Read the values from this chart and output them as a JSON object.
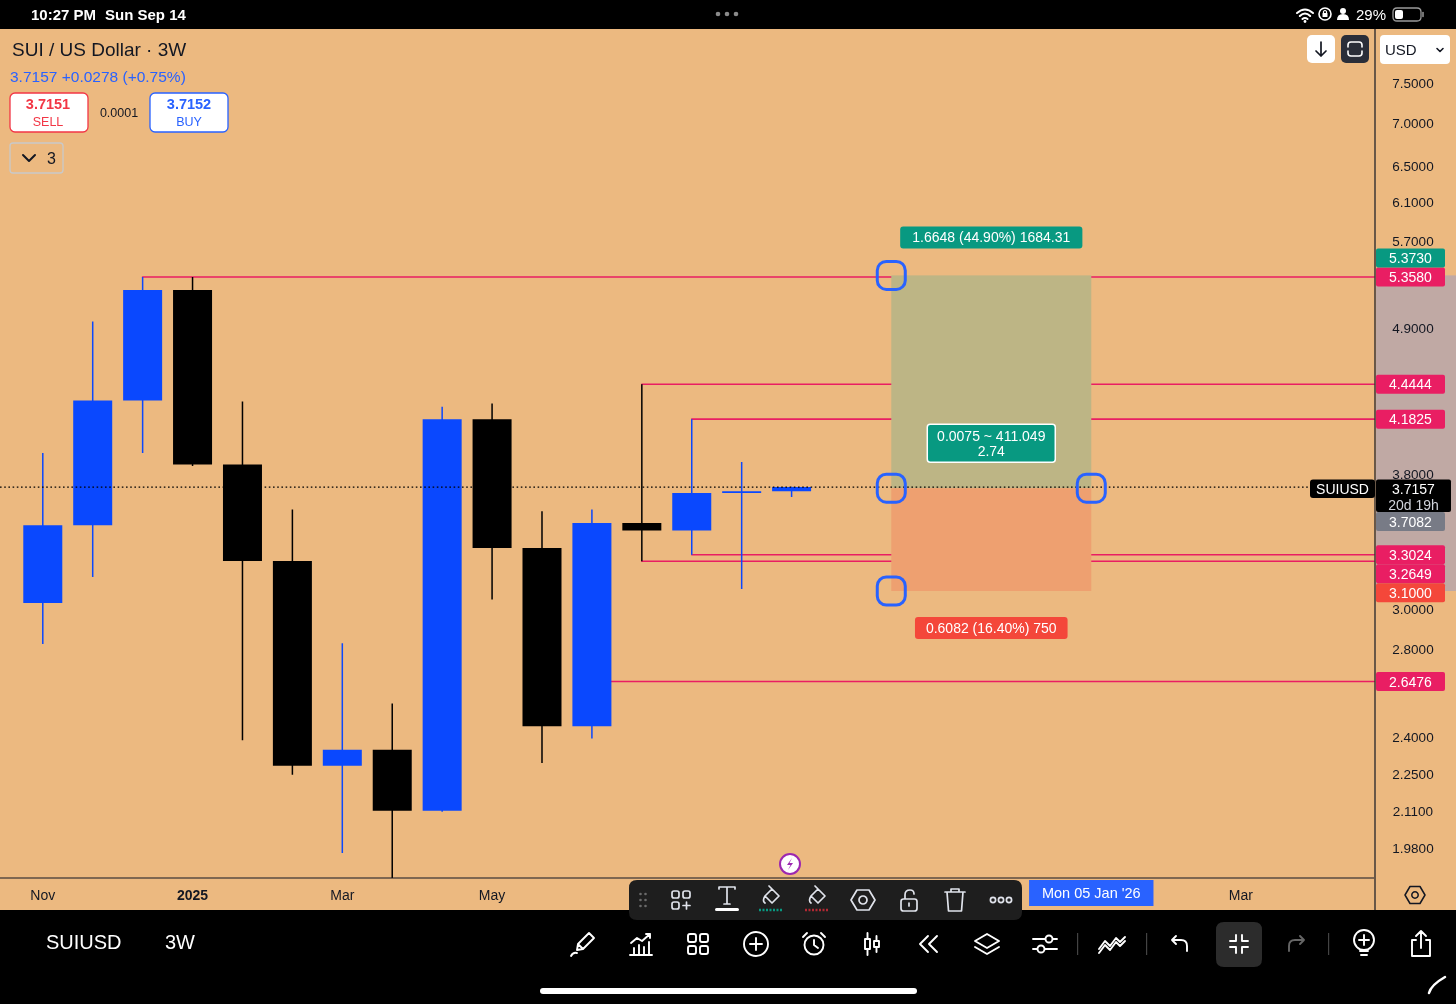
{
  "chart_data": {
    "type": "candlestick",
    "title": "SUI / US Dollar · 3W",
    "subtitle": "3.7157 +0.0278 (+0.75%)",
    "x": [
      "2024-11-04",
      "2024-11-25",
      "2024-12-16",
      "2025-01-06",
      "2025-01-27",
      "2025-02-17",
      "2025-03-10",
      "2025-03-31",
      "2025-04-21",
      "2025-05-12",
      "2025-06-02",
      "2025-06-23",
      "2025-07-14",
      "2025-08-04",
      "2025-08-25",
      "2025-09-15"
    ],
    "ohlc": [
      [
        3.036,
        3.943,
        2.826,
        3.476
      ],
      [
        3.476,
        4.958,
        3.177,
        4.321
      ],
      [
        4.321,
        5.358,
        3.943,
        5.238
      ],
      [
        5.238,
        5.358,
        3.854,
        3.865
      ],
      [
        3.865,
        4.313,
        2.39,
        3.266
      ],
      [
        3.266,
        3.573,
        2.251,
        2.286
      ],
      [
        2.286,
        2.83,
        1.964,
        2.351
      ],
      [
        2.351,
        2.548,
        1.88,
        2.114
      ],
      [
        2.114,
        4.274,
        2.11,
        4.181
      ],
      [
        4.181,
        4.298,
        3.054,
        3.341
      ],
      [
        3.341,
        3.562,
        2.297,
        2.449
      ],
      [
        2.449,
        3.573,
        2.397,
        3.49
      ],
      [
        3.49,
        4.4444,
        3.2649,
        3.444
      ],
      [
        3.444,
        4.1825,
        3.3024,
        3.678
      ],
      [
        3.678,
        3.882,
        3.111,
        3.6879
      ],
      [
        3.6879,
        3.718,
        3.652,
        3.7157
      ]
    ],
    "colors": [
      "#0a48fe",
      "#0a48fe",
      "#0a48fe",
      "#000000",
      "#000000",
      "#000000",
      "#0a48fe",
      "#000000",
      "#0a48fe",
      "#000000",
      "#000000",
      "#0a48fe",
      "#000000",
      "#0a48fe",
      "#0a48fe",
      "#0a48fe"
    ],
    "xlim": [
      "2024-10-17",
      "2026-05-18"
    ],
    "xticks": [
      {
        "value": "2024-11-04",
        "label": "Nov"
      },
      {
        "value": "2025-01-06",
        "label": "2025"
      },
      {
        "value": "2025-03-10",
        "label": "Mar"
      },
      {
        "value": "2025-05-12",
        "label": "May"
      },
      {
        "value": "2026-03-23",
        "label": "Mar"
      }
    ],
    "ylim": [
      1.88,
      8.24
    ],
    "yticks": [
      {
        "value": 7.5,
        "label": "7.5000"
      },
      {
        "value": 7,
        "label": "7.0000"
      },
      {
        "value": 6.5,
        "label": "6.5000"
      },
      {
        "value": 6.1,
        "label": "6.1000"
      },
      {
        "value": 5.7,
        "label": "5.7000"
      },
      {
        "value": 4.9,
        "label": "4.9000"
      },
      {
        "value": 3.8,
        "label": "3.8000"
      },
      {
        "value": 3,
        "label": "3.0000"
      },
      {
        "value": 2.8,
        "label": "2.8000"
      },
      {
        "value": 2.4,
        "label": "2.4000"
      },
      {
        "value": 2.25,
        "label": "2.2500"
      },
      {
        "value": 2.11,
        "label": "2.1100"
      },
      {
        "value": 1.98,
        "label": "1.9800"
      }
    ],
    "log": true,
    "series": [
      {
        "type": "line",
        "color": "#e91e63",
        "x": [
          "2024-12-16",
          "2026-05-18"
        ],
        "values": [
          5.358,
          5.358
        ],
        "value_labels": [
          null,
          "5.3580"
        ]
      },
      {
        "type": "line",
        "color": "#e91e63",
        "x": [
          "2025-07-14",
          "2026-05-18"
        ],
        "values": [
          4.4444,
          4.4444
        ],
        "value_labels": [
          null,
          "4.4444"
        ]
      },
      {
        "type": "line",
        "color": "#e91e63",
        "x": [
          "2025-08-04",
          "2026-05-18"
        ],
        "values": [
          4.1825,
          4.1825
        ],
        "value_labels": [
          null,
          "4.1825"
        ]
      },
      {
        "type": "line",
        "color": "#e91e63",
        "x": [
          "2025-08-04",
          "2026-05-18"
        ],
        "values": [
          3.3024,
          3.3024
        ],
        "value_labels": [
          null,
          "3.3024"
        ]
      },
      {
        "type": "line",
        "color": "#e91e63",
        "x": [
          "2025-07-14",
          "2026-05-18"
        ],
        "values": [
          3.2649,
          3.2649
        ],
        "value_labels": [
          null,
          "3.2649"
        ]
      },
      {
        "type": "line",
        "color": "#e91e63",
        "x": [
          "2025-07-01",
          "2026-05-18"
        ],
        "values": [
          2.6476,
          2.6476
        ],
        "value_labels": [
          null,
          "2.6476"
        ]
      },
      {
        "type": "bar",
        "color": "#bdb585",
        "x": [
          "2025-12-08"
        ],
        "base": [
          3.7082
        ],
        "values": [
          1.6648
        ],
        "value_labels": [
          "1.6648 (44.90%) 1684.31"
        ]
      },
      {
        "type": "bar",
        "color": "#eea070",
        "x": [
          "2025-12-08"
        ],
        "base": [
          3.1
        ],
        "values": [
          0.6082
        ],
        "value_labels": [
          "0.6082 (16.40%) 750"
        ]
      }
    ],
    "ref_lines": [
      {
        "axis": "y",
        "value": 3.7157,
        "label": "3.7157",
        "color": "#000000",
        "line_style": "dotted"
      }
    ],
    "annotations": [
      "10:27 PM",
      "Sun Sep 14",
      "29%",
      "3.7151",
      "SELL",
      "0.0001",
      "3.7152",
      "BUY",
      "3",
      "USD",
      "SUIUSD",
      "3W",
      "SUIUSD",
      "20d 19h",
      "0.0075 ~ 411.049",
      "2.74",
      "Mon 05 Jan '26",
      "5.3730",
      "3.7082",
      "3.1000"
    ]
  }
}
